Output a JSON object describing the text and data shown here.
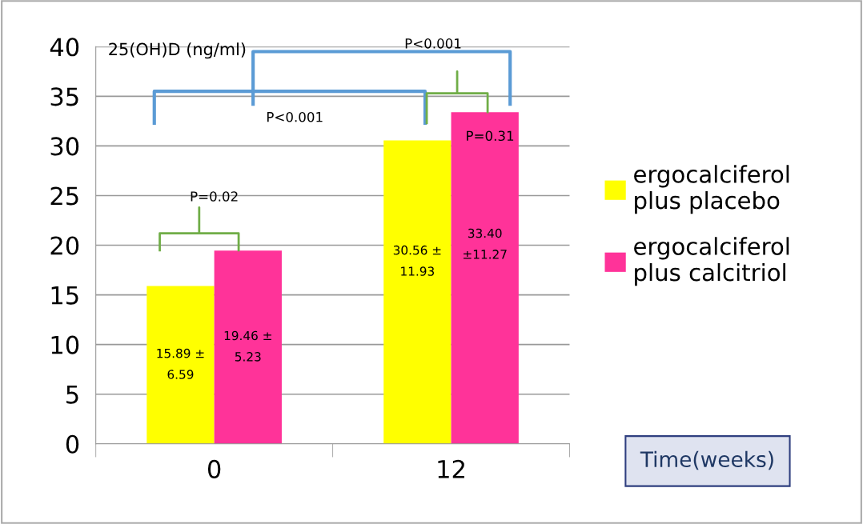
{
  "chart_data": {
    "type": "bar",
    "categories": [
      "0",
      "12"
    ],
    "series": [
      {
        "name": "ergocalciferol\nplus placebo",
        "color": "#ffff00",
        "values": [
          15.89,
          30.56
        ],
        "value_labels": [
          "15.89 ±\n6.59",
          "30.56 ±\n11.93"
        ]
      },
      {
        "name": "ergocalciferol\nplus calcitriol",
        "color": "#ff3399",
        "values": [
          19.46,
          33.4
        ],
        "value_labels": [
          "19.46 ±\n5.23",
          "33.40\n±11.27"
        ]
      }
    ],
    "xlabel": "Time(weeks)",
    "ylim": [
      0,
      40
    ],
    "yticks": [
      0,
      5,
      10,
      15,
      20,
      25,
      30,
      35,
      40
    ],
    "grid": "y",
    "legend": "right",
    "annotations": [
      "25(OH)D (ng/ml)",
      "P<0.001",
      "P<0.001",
      "P=0.02",
      "P=0.31"
    ]
  }
}
